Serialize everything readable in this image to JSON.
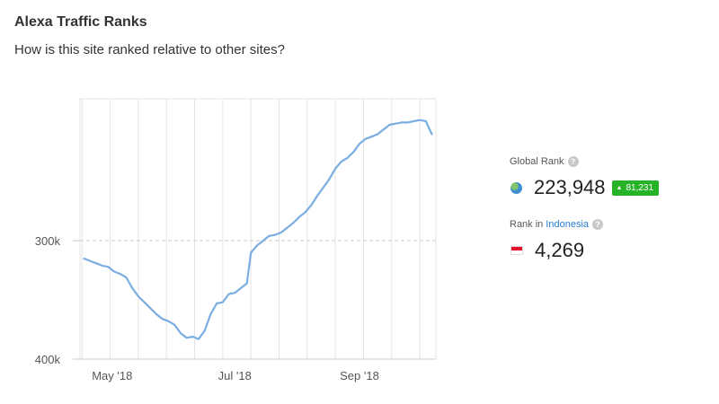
{
  "header": {
    "title": "Alexa Traffic Ranks",
    "subtitle": "How is this site ranked relative to other sites?"
  },
  "global_rank": {
    "label": "Global Rank",
    "value": "223,948",
    "delta": "81,231",
    "delta_direction": "up",
    "badge_color": "#27b327"
  },
  "country_rank": {
    "label_prefix": "Rank in",
    "country": "Indonesia",
    "value": "4,269",
    "link_color": "#2a7fd4"
  },
  "chart_data": {
    "type": "line",
    "title": "",
    "xlabel": "",
    "ylabel": "",
    "y_inverted": true,
    "ylim": [
      400000,
      180000
    ],
    "yticks": [
      {
        "label": "300k",
        "value": 300000
      },
      {
        "label": "400k",
        "value": 400000
      }
    ],
    "xticks": [
      {
        "label": "May '18",
        "value": "2018-05-01"
      },
      {
        "label": "Jul '18",
        "value": "2018-07-01"
      },
      {
        "label": "Sep '18",
        "value": "2018-09-01"
      }
    ],
    "grid": true,
    "line_color": "#7aaee3",
    "series": [
      {
        "points": [
          [
            "2018-04-17",
            315000
          ],
          [
            "2018-04-20",
            317000
          ],
          [
            "2018-04-23",
            319000
          ],
          [
            "2018-04-26",
            321000
          ],
          [
            "2018-04-29",
            322000
          ],
          [
            "2018-05-02",
            326000
          ],
          [
            "2018-05-05",
            328000
          ],
          [
            "2018-05-08",
            331000
          ],
          [
            "2018-05-11",
            340000
          ],
          [
            "2018-05-14",
            347000
          ],
          [
            "2018-05-17",
            352000
          ],
          [
            "2018-05-20",
            357000
          ],
          [
            "2018-05-23",
            362000
          ],
          [
            "2018-05-26",
            366000
          ],
          [
            "2018-05-29",
            368000
          ],
          [
            "2018-06-01",
            371000
          ],
          [
            "2018-06-04",
            378000
          ],
          [
            "2018-06-07",
            382000
          ],
          [
            "2018-06-10",
            381000
          ],
          [
            "2018-06-13",
            383000
          ],
          [
            "2018-06-16",
            376000
          ],
          [
            "2018-06-19",
            362000
          ],
          [
            "2018-06-22",
            353000
          ],
          [
            "2018-06-25",
            352000
          ],
          [
            "2018-06-28",
            345000
          ],
          [
            "2018-07-01",
            344000
          ],
          [
            "2018-07-04",
            340000
          ],
          [
            "2018-07-07",
            336000
          ],
          [
            "2018-07-09",
            310000
          ],
          [
            "2018-07-12",
            304000
          ],
          [
            "2018-07-15",
            300000
          ],
          [
            "2018-07-18",
            296000
          ],
          [
            "2018-07-21",
            295000
          ],
          [
            "2018-07-24",
            293000
          ],
          [
            "2018-07-27",
            289000
          ],
          [
            "2018-07-30",
            285000
          ],
          [
            "2018-08-02",
            280000
          ],
          [
            "2018-08-05",
            276000
          ],
          [
            "2018-08-08",
            270000
          ],
          [
            "2018-08-11",
            262000
          ],
          [
            "2018-08-14",
            255000
          ],
          [
            "2018-08-17",
            248000
          ],
          [
            "2018-08-20",
            239000
          ],
          [
            "2018-08-23",
            233000
          ],
          [
            "2018-08-26",
            230000
          ],
          [
            "2018-08-29",
            225000
          ],
          [
            "2018-09-01",
            218000
          ],
          [
            "2018-09-04",
            214000
          ],
          [
            "2018-09-07",
            212000
          ],
          [
            "2018-09-10",
            210000
          ],
          [
            "2018-09-13",
            206000
          ],
          [
            "2018-09-16",
            202000
          ],
          [
            "2018-09-19",
            201000
          ],
          [
            "2018-09-22",
            200000
          ],
          [
            "2018-09-25",
            200000
          ],
          [
            "2018-09-28",
            199000
          ],
          [
            "2018-10-01",
            198000
          ],
          [
            "2018-10-04",
            199000
          ],
          [
            "2018-10-07",
            210000
          ]
        ]
      }
    ]
  }
}
